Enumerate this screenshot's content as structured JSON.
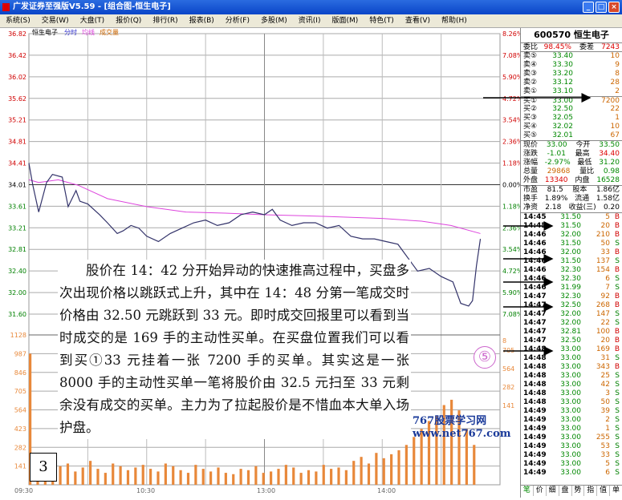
{
  "window": {
    "title": "广发证券至强版V5.59 - [组合图-恒生电子]"
  },
  "menu": [
    "系统(S)",
    "交易(W)",
    "大盘(T)",
    "报价(Q)",
    "排行(R)",
    "报表(B)",
    "分析(F)",
    "多股(M)",
    "资讯(I)",
    "版面(M)",
    "特色(T)",
    "查看(V)",
    "帮助(H)"
  ],
  "legend": {
    "name": "恒生电子",
    "l1": "分时",
    "l2": "均线",
    "l3": "成交量"
  },
  "colors": {
    "price": "#33336a",
    "avg": "#dd44dd",
    "vol": "#e8883a",
    "up": "#d00000",
    "down": "#008000"
  },
  "chart_data": {
    "type": "line",
    "x_ticks": [
      "09:30",
      "10:30",
      "13:00",
      "14:00"
    ],
    "price_ticks": [
      "36.82",
      "36.42",
      "36.02",
      "35.62",
      "35.21",
      "34.81",
      "34.41",
      "34.01",
      "33.61",
      "33.21",
      "32.81",
      "32.40",
      "32.00",
      "31.60"
    ],
    "pct_ticks": [
      "8.26%",
      "7.08%",
      "5.90%",
      "4.72%",
      "3.54%",
      "2.36%",
      "1.18%",
      "0.00%",
      "1.18%",
      "2.36%",
      "3.54%",
      "4.72%",
      "5.90%",
      "7.08%"
    ],
    "vol_ticks": [
      "1128",
      "987",
      "846",
      "705",
      "564",
      "423",
      "282",
      "141"
    ],
    "vol_ticks_right": [
      "8",
      "705",
      "564",
      "282",
      "141"
    ],
    "prev_close": 34.01,
    "price_range": [
      31.6,
      36.82
    ],
    "vol_max": 1128,
    "price_minutes": [
      0,
      2,
      5,
      9,
      12,
      17,
      20,
      24,
      26,
      30,
      36,
      40,
      45,
      48,
      52,
      56,
      60,
      66,
      72,
      78,
      84,
      90,
      96,
      102,
      108,
      114,
      120,
      124,
      128,
      134,
      140,
      146,
      152,
      158,
      164,
      170,
      176,
      182,
      188,
      194,
      198,
      204,
      210,
      216,
      220,
      224,
      226,
      228,
      230
    ],
    "price": [
      34.41,
      34.0,
      33.5,
      34.05,
      34.2,
      34.15,
      33.6,
      33.9,
      33.7,
      33.65,
      33.45,
      33.3,
      33.1,
      33.15,
      33.25,
      33.2,
      33.05,
      32.95,
      33.1,
      33.2,
      33.3,
      33.35,
      33.25,
      33.3,
      33.45,
      33.5,
      33.45,
      33.55,
      33.35,
      33.25,
      33.3,
      33.3,
      33.2,
      33.25,
      33.05,
      33.0,
      33.0,
      32.95,
      32.9,
      32.6,
      32.4,
      32.45,
      32.3,
      32.2,
      31.8,
      31.75,
      31.85,
      32.5,
      33.0
    ],
    "avg_minutes": [
      0,
      5,
      15,
      25,
      40,
      60,
      80,
      100,
      120,
      150,
      180,
      200,
      215,
      230
    ],
    "avg": [
      34.1,
      34.05,
      34.1,
      34.0,
      33.75,
      33.6,
      33.5,
      33.48,
      33.45,
      33.42,
      33.38,
      33.33,
      33.25,
      33.1
    ],
    "volume": [
      987,
      120,
      90,
      110,
      140,
      160,
      100,
      130,
      180,
      120,
      90,
      160,
      140,
      110,
      130,
      150,
      120,
      100,
      160,
      140,
      110,
      90,
      150,
      120,
      100,
      130,
      90,
      80,
      120,
      110,
      140,
      90,
      100,
      120,
      150,
      130,
      90,
      110,
      100,
      150,
      120,
      130,
      110,
      180,
      210,
      160,
      240,
      200,
      230,
      260,
      300,
      360,
      420,
      480,
      520,
      600,
      640,
      560,
      420,
      300
    ]
  },
  "right": {
    "code_name": "600570 恒生电子",
    "wb_label": "委比",
    "wb": "98.45%",
    "wc_label": "委差",
    "wc": "7243",
    "asks": [
      {
        "l": "卖⑤",
        "p": "33.40",
        "v": "10"
      },
      {
        "l": "卖④",
        "p": "33.30",
        "v": "9"
      },
      {
        "l": "卖③",
        "p": "33.20",
        "v": "8"
      },
      {
        "l": "卖②",
        "p": "33.12",
        "v": "28"
      },
      {
        "l": "卖①",
        "p": "33.10",
        "v": "2"
      }
    ],
    "bids": [
      {
        "l": "买①",
        "p": "33.00",
        "v": "7200"
      },
      {
        "l": "买②",
        "p": "32.50",
        "v": "22"
      },
      {
        "l": "买③",
        "p": "32.05",
        "v": "1"
      },
      {
        "l": "买④",
        "p": "32.02",
        "v": "10"
      },
      {
        "l": "买⑤",
        "p": "32.01",
        "v": "67"
      }
    ],
    "quote": [
      [
        "现价",
        "33.00",
        "今开",
        "33.50"
      ],
      [
        "涨跌",
        "-1.01",
        "最高",
        "34.40"
      ],
      [
        "涨幅",
        "-2.97%",
        "最低",
        "31.20"
      ],
      [
        "总量",
        "29868",
        "量比",
        "0.98"
      ],
      [
        "外盘",
        "13340",
        "内盘",
        "16528"
      ]
    ],
    "fund": [
      [
        "市盈",
        "81.5",
        "股本",
        "1.86亿"
      ],
      [
        "换手",
        "1.89%",
        "流通",
        "1.58亿"
      ],
      [
        "净资",
        "2.18",
        "收益(三)",
        "0.20"
      ]
    ],
    "ticks": [
      [
        "14:45",
        "31.50",
        "5",
        "B"
      ],
      [
        "14:45",
        "31.50",
        "20",
        "B"
      ],
      [
        "14:46",
        "32.00",
        "210",
        "B"
      ],
      [
        "14:46",
        "31.50",
        "50",
        "S"
      ],
      [
        "14:46",
        "32.00",
        "33",
        "B"
      ],
      [
        "14:46",
        "31.50",
        "137",
        "S"
      ],
      [
        "14:46",
        "32.30",
        "154",
        "B"
      ],
      [
        "14:46",
        "32.30",
        "6",
        "S"
      ],
      [
        "14:46",
        "31.99",
        "7",
        "S"
      ],
      [
        "14:47",
        "32.30",
        "92",
        "B"
      ],
      [
        "14:47",
        "32.50",
        "268",
        "B"
      ],
      [
        "14:47",
        "32.00",
        "147",
        "S"
      ],
      [
        "14:47",
        "32.00",
        "22",
        "S"
      ],
      [
        "14:47",
        "32.81",
        "100",
        "B"
      ],
      [
        "14:47",
        "32.50",
        "20",
        "B"
      ],
      [
        "14:48",
        "33.00",
        "169",
        "B"
      ],
      [
        "14:48",
        "33.00",
        "31",
        "S"
      ],
      [
        "14:48",
        "33.00",
        "343",
        "B"
      ],
      [
        "14:48",
        "33.00",
        "25",
        "S"
      ],
      [
        "14:48",
        "33.00",
        "42",
        "S"
      ],
      [
        "14:48",
        "33.00",
        "3",
        "S"
      ],
      [
        "14:48",
        "33.00",
        "50",
        "S"
      ],
      [
        "14:49",
        "33.00",
        "39",
        "S"
      ],
      [
        "14:49",
        "33.00",
        "2",
        "S"
      ],
      [
        "14:49",
        "33.00",
        "1",
        "S"
      ],
      [
        "14:49",
        "33.00",
        "255",
        "S"
      ],
      [
        "14:49",
        "33.00",
        "53",
        "S"
      ],
      [
        "14:49",
        "33.00",
        "33",
        "S"
      ],
      [
        "14:49",
        "33.00",
        "5",
        "S"
      ],
      [
        "14:49",
        "33.00",
        "6",
        "S"
      ]
    ],
    "tabs": [
      "笔",
      "价",
      "细",
      "盘",
      "势",
      "指",
      "值",
      "单"
    ]
  },
  "note": {
    "text": "股价在 14：42 分开始异动的快速推高过程中，买盘多次出现价格以跳跃式上升，其中在 14：48 分第一笔成交时价格由 32.50 元跳跃到 33 元。即时成交回报里可以看到当时成交的是 169 手的主动性买单。在买盘位置我们可以看到买①33 元挂着一张 7200 手的买单。其实这是一张 8000 手的主动性买单一笔将股价由 32.5 元扫至 33 元剩余没有成交的买单。主力为了拉起股价是不惜血本大单入场护盘。"
  },
  "page_number": "3",
  "marker": "⑤",
  "watermark": "767股票学习网 www.net767.com"
}
